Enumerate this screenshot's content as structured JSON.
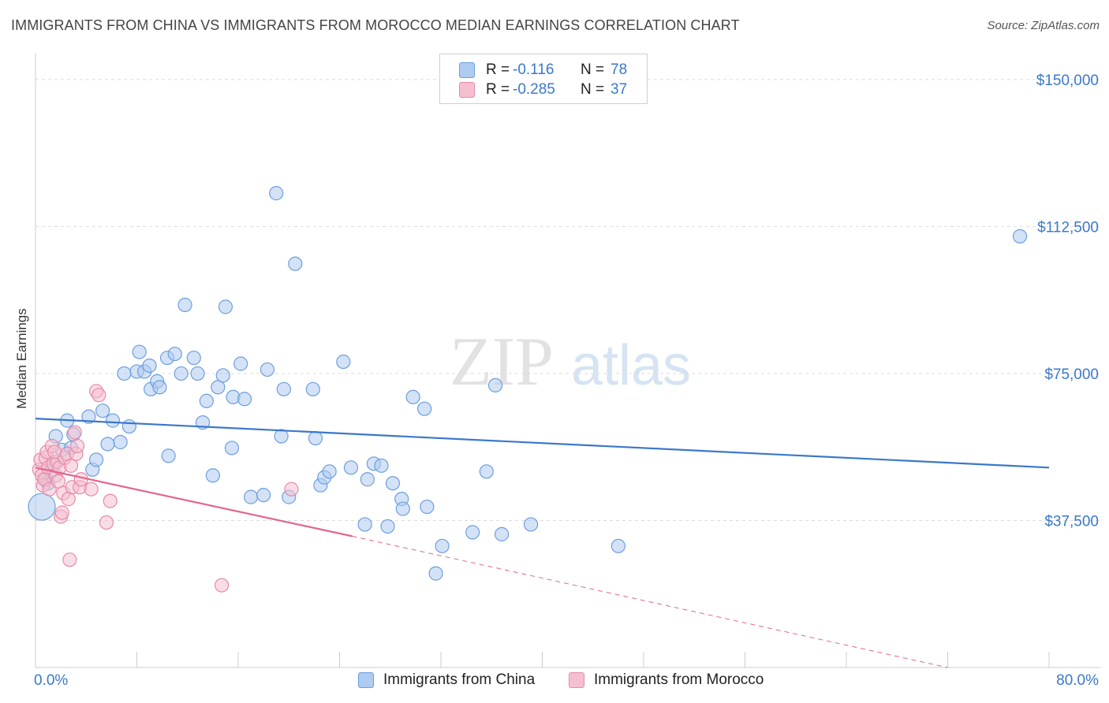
{
  "header": {
    "title": "IMMIGRANTS FROM CHINA VS IMMIGRANTS FROM MOROCCO MEDIAN EARNINGS CORRELATION CHART",
    "source": "Source: ZipAtlas.com"
  },
  "watermark": {
    "zip": "ZIP",
    "atlas": "atlas"
  },
  "legend": {
    "rows": [
      {
        "r_label": "R =",
        "r_value": "-0.116",
        "n_label": "N =",
        "n_value": "78",
        "color": "#a8c8f0"
      },
      {
        "r_label": "R =",
        "r_value": "-0.285",
        "n_label": "N =",
        "n_value": "37",
        "color": "#f6b8cc"
      }
    ]
  },
  "chart_data": {
    "type": "scatter",
    "title": "IMMIGRANTS FROM CHINA VS IMMIGRANTS FROM MOROCCO MEDIAN EARNINGS CORRELATION CHART",
    "xlabel": "",
    "ylabel": "Median Earnings",
    "xlim": [
      0,
      80
    ],
    "ylim": [
      0,
      155000
    ],
    "x_tick_labels": [
      "0.0%",
      "80.0%"
    ],
    "y_ticks": [
      {
        "value": 37500,
        "label": "$37,500"
      },
      {
        "value": 75000,
        "label": "$75,000"
      },
      {
        "value": 112500,
        "label": "$112,500"
      },
      {
        "value": 150000,
        "label": "$150,000"
      }
    ],
    "series": [
      {
        "name": "Immigrants from China",
        "color": "#6d9fdc",
        "fill": "#aecbf0",
        "trend": {
          "x": [
            0,
            80
          ],
          "y": [
            63500,
            51000
          ],
          "color": "#3b78c9"
        },
        "points": [
          [
            0.5,
            41000
          ],
          [
            0.8,
            48000
          ],
          [
            1.0,
            47000
          ],
          [
            1.2,
            50000
          ],
          [
            1.5,
            52000
          ],
          [
            1.6,
            59000
          ],
          [
            2.1,
            55500
          ],
          [
            2.5,
            63000
          ],
          [
            2.8,
            56000
          ],
          [
            3.0,
            59500
          ],
          [
            4.2,
            64000
          ],
          [
            4.5,
            50500
          ],
          [
            4.8,
            53000
          ],
          [
            5.3,
            65500
          ],
          [
            5.7,
            57000
          ],
          [
            6.1,
            63000
          ],
          [
            6.7,
            57500
          ],
          [
            7.0,
            75000
          ],
          [
            7.4,
            61500
          ],
          [
            8.0,
            75500
          ],
          [
            8.2,
            80500
          ],
          [
            8.6,
            75500
          ],
          [
            9.0,
            77000
          ],
          [
            9.1,
            71000
          ],
          [
            9.6,
            73000
          ],
          [
            9.8,
            71500
          ],
          [
            10.4,
            79000
          ],
          [
            10.5,
            54000
          ],
          [
            11.0,
            80000
          ],
          [
            11.5,
            75000
          ],
          [
            11.8,
            92500
          ],
          [
            12.5,
            79000
          ],
          [
            12.8,
            75000
          ],
          [
            13.2,
            62500
          ],
          [
            13.5,
            68000
          ],
          [
            14.0,
            49000
          ],
          [
            14.4,
            71500
          ],
          [
            14.8,
            74500
          ],
          [
            15.0,
            92000
          ],
          [
            15.5,
            56000
          ],
          [
            15.6,
            69000
          ],
          [
            16.2,
            77500
          ],
          [
            16.5,
            68500
          ],
          [
            17.0,
            43500
          ],
          [
            18.0,
            44000
          ],
          [
            18.3,
            76000
          ],
          [
            19.0,
            121000
          ],
          [
            19.4,
            59000
          ],
          [
            19.6,
            71000
          ],
          [
            20.0,
            43500
          ],
          [
            20.5,
            103000
          ],
          [
            21.9,
            71000
          ],
          [
            22.1,
            58500
          ],
          [
            22.5,
            46500
          ],
          [
            22.8,
            48500
          ],
          [
            23.2,
            50000
          ],
          [
            24.3,
            78000
          ],
          [
            24.9,
            51000
          ],
          [
            26.0,
            36500
          ],
          [
            26.2,
            48000
          ],
          [
            26.7,
            52000
          ],
          [
            27.3,
            51500
          ],
          [
            27.8,
            36000
          ],
          [
            28.2,
            47000
          ],
          [
            28.9,
            43000
          ],
          [
            29.0,
            40500
          ],
          [
            29.8,
            69000
          ],
          [
            30.7,
            66000
          ],
          [
            30.9,
            41000
          ],
          [
            31.6,
            24000
          ],
          [
            32.1,
            31000
          ],
          [
            34.5,
            34500
          ],
          [
            35.6,
            50000
          ],
          [
            36.3,
            72000
          ],
          [
            36.8,
            34000
          ],
          [
            39.1,
            36500
          ],
          [
            46.0,
            31000
          ],
          [
            77.7,
            110000
          ]
        ]
      },
      {
        "name": "Immigrants from Morocco",
        "color": "#e68aa8",
        "fill": "#f6bfd0",
        "trend": {
          "x": [
            0,
            25
          ],
          "y": [
            51000,
            33500
          ],
          "color": "#e2668f",
          "dash_to": {
            "x": 72,
            "y": 0
          }
        },
        "points": [
          [
            0.3,
            50500
          ],
          [
            0.4,
            53000
          ],
          [
            0.5,
            49000
          ],
          [
            0.6,
            46500
          ],
          [
            0.7,
            48000
          ],
          [
            0.8,
            53500
          ],
          [
            0.9,
            55000
          ],
          [
            1.0,
            51000
          ],
          [
            1.1,
            45500
          ],
          [
            1.3,
            56500
          ],
          [
            1.4,
            52000
          ],
          [
            1.6,
            49000
          ],
          [
            1.7,
            52500
          ],
          [
            1.8,
            47500
          ],
          [
            1.9,
            51000
          ],
          [
            2.0,
            38500
          ],
          [
            2.1,
            39500
          ],
          [
            2.2,
            44500
          ],
          [
            2.3,
            53500
          ],
          [
            2.5,
            54500
          ],
          [
            2.6,
            43000
          ],
          [
            2.7,
            27500
          ],
          [
            2.8,
            51500
          ],
          [
            2.9,
            46000
          ],
          [
            3.1,
            60000
          ],
          [
            3.2,
            54500
          ],
          [
            3.3,
            56500
          ],
          [
            3.5,
            46000
          ],
          [
            3.6,
            48000
          ],
          [
            4.4,
            45500
          ],
          [
            4.8,
            70500
          ],
          [
            5.0,
            69500
          ],
          [
            5.6,
            37000
          ],
          [
            5.9,
            42500
          ],
          [
            14.7,
            21000
          ],
          [
            20.2,
            45500
          ],
          [
            1.5,
            55000
          ]
        ]
      }
    ]
  },
  "bottom_legend": {
    "items": [
      {
        "label": "Immigrants from China",
        "color": "#aecbf0",
        "border": "#6d9fdc"
      },
      {
        "label": "Immigrants from Morocco",
        "color": "#f6bfd0",
        "border": "#e68aa8"
      }
    ]
  }
}
